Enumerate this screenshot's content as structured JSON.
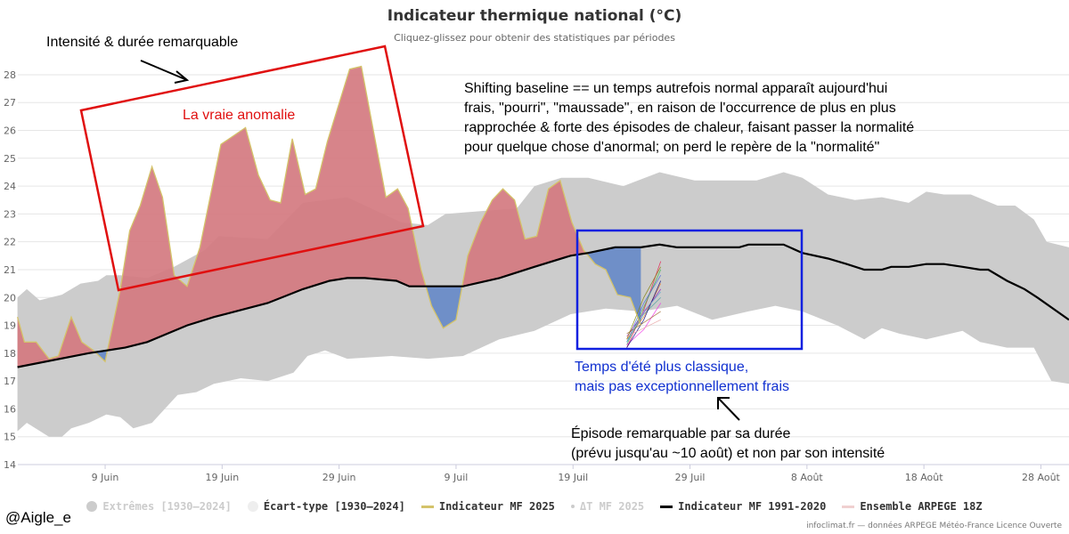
{
  "chart_data": {
    "type": "area",
    "title": "Indicateur thermique national (°C)",
    "subtitle": "Cliquez-glissez pour obtenir des statistiques par périodes",
    "xlabel": "",
    "ylabel": "",
    "x_unit": "days since 1 June 2025",
    "xlim": [
      0.5,
      90.4
    ],
    "ylim": [
      14,
      28
    ],
    "yticks": [
      "14",
      "15",
      "16",
      "17",
      "18",
      "19",
      "20",
      "21",
      "22",
      "23",
      "24",
      "25",
      "26",
      "27",
      "28"
    ],
    "xticks": [
      {
        "day": 8,
        "label": "9 Juin"
      },
      {
        "day": 18,
        "label": "19 Juin"
      },
      {
        "day": 28,
        "label": "29 Juin"
      },
      {
        "day": 38,
        "label": "9 Juil"
      },
      {
        "day": 48,
        "label": "19 Juil"
      },
      {
        "day": 58,
        "label": "29 Juil"
      },
      {
        "day": 68,
        "label": "8 Août"
      },
      {
        "day": 78,
        "label": "18 Août"
      },
      {
        "day": 88,
        "label": "28 Août"
      }
    ],
    "grid": true,
    "legend_position": "bottom",
    "series": [
      {
        "name": "Extrêmes [1930–2024] max",
        "color": "#cccccc",
        "points": [
          [
            0.5,
            20.0
          ],
          [
            1.3,
            20.3
          ],
          [
            2.4,
            19.9
          ],
          [
            4.3,
            20.1
          ],
          [
            5.9,
            20.5
          ],
          [
            7.4,
            20.6
          ],
          [
            8.1,
            20.8
          ],
          [
            9.3,
            20.8
          ],
          [
            11.6,
            20.7
          ],
          [
            13.9,
            21.1
          ],
          [
            16.5,
            21.7
          ],
          [
            17.7,
            22.2
          ],
          [
            21.9,
            22.1
          ],
          [
            24.9,
            23.4
          ],
          [
            28.7,
            23.6
          ],
          [
            33.3,
            22.7
          ],
          [
            35.6,
            22.6
          ],
          [
            37.1,
            23.0
          ],
          [
            40.1,
            23.1
          ],
          [
            43.2,
            23.2
          ],
          [
            44.7,
            24.0
          ],
          [
            47,
            24.3
          ],
          [
            49.3,
            24.3
          ],
          [
            52.3,
            24.0
          ],
          [
            55.4,
            24.5
          ],
          [
            58.4,
            24.2
          ],
          [
            63.7,
            24.2
          ],
          [
            66,
            24.5
          ],
          [
            67.6,
            24.3
          ],
          [
            69.8,
            23.7
          ],
          [
            72.1,
            23.5
          ],
          [
            74.4,
            23.6
          ],
          [
            76.7,
            23.4
          ],
          [
            78.2,
            23.8
          ],
          [
            79.7,
            23.7
          ],
          [
            82,
            23.7
          ],
          [
            84.3,
            23.3
          ],
          [
            85.8,
            23.3
          ],
          [
            87.4,
            22.8
          ],
          [
            88.5,
            22.0
          ],
          [
            90.4,
            21.8
          ]
        ]
      },
      {
        "name": "Extrêmes [1930–2024] min",
        "color": "#cccccc",
        "points": [
          [
            0.5,
            15.2
          ],
          [
            1.3,
            15.5
          ],
          [
            3.2,
            15.0
          ],
          [
            4.3,
            15.0
          ],
          [
            5.1,
            15.3
          ],
          [
            6.6,
            15.5
          ],
          [
            8.1,
            15.8
          ],
          [
            9.3,
            15.7
          ],
          [
            10.4,
            15.3
          ],
          [
            12,
            15.5
          ],
          [
            13.1,
            16.0
          ],
          [
            14.2,
            16.5
          ],
          [
            15.8,
            16.6
          ],
          [
            17.3,
            16.9
          ],
          [
            19.6,
            17.1
          ],
          [
            21.9,
            17.0
          ],
          [
            24.1,
            17.3
          ],
          [
            25.3,
            17.9
          ],
          [
            26.8,
            18.1
          ],
          [
            28.7,
            17.8
          ],
          [
            32.5,
            17.9
          ],
          [
            35.6,
            17.8
          ],
          [
            38.6,
            17.9
          ],
          [
            41.7,
            18.5
          ],
          [
            44.7,
            18.8
          ],
          [
            47.8,
            19.4
          ],
          [
            50.8,
            19.6
          ],
          [
            53.8,
            19.5
          ],
          [
            56.9,
            19.7
          ],
          [
            59.9,
            19.2
          ],
          [
            63,
            19.5
          ],
          [
            65.3,
            19.7
          ],
          [
            67.6,
            19.5
          ],
          [
            70.6,
            19.0
          ],
          [
            72.9,
            18.5
          ],
          [
            74.4,
            18.9
          ],
          [
            75.9,
            18.7
          ],
          [
            78.2,
            18.5
          ],
          [
            81.3,
            18.8
          ],
          [
            82.8,
            18.4
          ],
          [
            85.1,
            18.2
          ],
          [
            87.4,
            18.2
          ],
          [
            88.9,
            17.0
          ],
          [
            90.4,
            16.9
          ]
        ]
      },
      {
        "name": "Indicateur MF 2025",
        "color": "#d4c36a",
        "points": [
          [
            0.5,
            19.3
          ],
          [
            1.1,
            18.4
          ],
          [
            2.1,
            18.4
          ],
          [
            3.2,
            17.8
          ],
          [
            4.0,
            17.9
          ],
          [
            5.1,
            19.3
          ],
          [
            6.0,
            18.4
          ],
          [
            7.0,
            18.1
          ],
          [
            8.0,
            17.7
          ],
          [
            9.3,
            20.3
          ],
          [
            10.1,
            22.4
          ],
          [
            11.0,
            23.3
          ],
          [
            12.0,
            24.7
          ],
          [
            12.9,
            23.6
          ],
          [
            13.9,
            20.8
          ],
          [
            15.0,
            20.4
          ],
          [
            16.1,
            21.8
          ],
          [
            17.9,
            25.5
          ],
          [
            20.0,
            26.1
          ],
          [
            21.1,
            24.4
          ],
          [
            22.1,
            23.5
          ],
          [
            23.0,
            23.4
          ],
          [
            24.0,
            25.7
          ],
          [
            25.1,
            23.7
          ],
          [
            26.0,
            23.9
          ],
          [
            27.0,
            25.6
          ],
          [
            28.9,
            28.2
          ],
          [
            29.9,
            28.3
          ],
          [
            32.0,
            23.6
          ],
          [
            33.0,
            23.9
          ],
          [
            33.9,
            23.2
          ],
          [
            35.0,
            21.0
          ],
          [
            35.9,
            19.7
          ],
          [
            36.9,
            18.9
          ],
          [
            38.0,
            19.2
          ],
          [
            39.0,
            21.5
          ],
          [
            40.1,
            22.7
          ],
          [
            41.1,
            23.5
          ],
          [
            42.0,
            23.9
          ],
          [
            43.0,
            23.5
          ],
          [
            43.9,
            22.1
          ],
          [
            44.9,
            22.2
          ],
          [
            45.9,
            23.9
          ],
          [
            46.9,
            24.2
          ],
          [
            47.9,
            22.7
          ],
          [
            48.9,
            21.7
          ],
          [
            49.9,
            21.2
          ],
          [
            50.8,
            21.0
          ],
          [
            51.8,
            20.1
          ],
          [
            52.9,
            20.0
          ],
          [
            53.8,
            19.0
          ]
        ]
      },
      {
        "name": "Indicateur MF 1991-2020",
        "color": "#000000",
        "points": [
          [
            0.5,
            17.5
          ],
          [
            6.6,
            18.0
          ],
          [
            9.7,
            18.2
          ],
          [
            11.6,
            18.4
          ],
          [
            15,
            19.0
          ],
          [
            17.3,
            19.3
          ],
          [
            21.9,
            19.8
          ],
          [
            24.9,
            20.3
          ],
          [
            27.2,
            20.6
          ],
          [
            28.7,
            20.7
          ],
          [
            30.2,
            20.7
          ],
          [
            32.9,
            20.6
          ],
          [
            34,
            20.4
          ],
          [
            38.6,
            20.4
          ],
          [
            41.7,
            20.7
          ],
          [
            44.7,
            21.1
          ],
          [
            47.8,
            21.5
          ],
          [
            49.3,
            21.6
          ],
          [
            51.6,
            21.8
          ],
          [
            53.8,
            21.8
          ],
          [
            55.4,
            21.9
          ],
          [
            56.9,
            21.8
          ],
          [
            62.2,
            21.8
          ],
          [
            63,
            21.9
          ],
          [
            66,
            21.9
          ],
          [
            67.6,
            21.6
          ],
          [
            69.8,
            21.4
          ],
          [
            71.4,
            21.2
          ],
          [
            72.9,
            21.0
          ],
          [
            74.4,
            21.0
          ],
          [
            75.2,
            21.1
          ],
          [
            76.7,
            21.1
          ],
          [
            78.2,
            21.2
          ],
          [
            79.7,
            21.2
          ],
          [
            81.3,
            21.1
          ],
          [
            82.8,
            21.0
          ],
          [
            83.5,
            21.0
          ],
          [
            85.1,
            20.6
          ],
          [
            86.6,
            20.3
          ],
          [
            87.7,
            20.0
          ],
          [
            90.4,
            19.2
          ]
        ]
      }
    ],
    "ensemble": {
      "name": "Ensemble ARPEGE 18Z",
      "start_day": 52.6,
      "end_day": 55.5,
      "start_values": [
        18.2,
        18.3,
        18.4,
        18.5,
        18.6,
        18.4,
        18.3,
        18.7,
        18.5,
        18.2,
        18.6,
        18.4
      ],
      "end_values": [
        21.3,
        21.0,
        20.8,
        20.5,
        20.3,
        20.0,
        19.8,
        19.5,
        21.1,
        20.6,
        19.2,
        20.2
      ],
      "colors": [
        "#e6194b",
        "#3cb44b",
        "#4363d8",
        "#f58231",
        "#911eb4",
        "#46a0a0",
        "#f032e6",
        "#9a6324",
        "#808000",
        "#000075",
        "#e6a0a0",
        "#5aa0d0"
      ]
    },
    "above_fill": "#d47a80",
    "below_fill": "#6f8fc8"
  },
  "legend": [
    {
      "label": "Extrêmes [1930–2024]",
      "dim": true
    },
    {
      "label": "Écart-type [1930–2024]",
      "dim": false
    },
    {
      "label": "Indicateur MF 2025",
      "dim": false
    },
    {
      "label": "ΔT MF 2025",
      "dim": true
    },
    {
      "label": "Indicateur MF 1991-2020",
      "dim": false
    },
    {
      "label": "Ensemble ARPEGE 18Z",
      "dim": false
    }
  ],
  "annotations": {
    "top_left": "Intensité & durée remarquable",
    "anomaly": "La vraie anomalie",
    "shifting": [
      "Shifting baseline == un temps autrefois normal apparaît aujourd'hui",
      "frais, \"pourri\", \"maussade\", en raison de l'occurrence de plus en plus",
      "rapprochée & forte des épisodes de chaleur, faisant passer la normalité",
      "pour quelque chose d'anormal; on perd le repère de la \"normalité\""
    ],
    "classic": [
      "Temps d'été plus classique,",
      "mais pas exceptionnellement frais"
    ],
    "episode": [
      "Épisode remarquable par sa durée",
      "(prévu   jusqu'au ~10 août) et non par son intensité"
    ]
  },
  "handle": "@Aigle_e",
  "credit": "infoclimat.fr — données ARPEGE Météo-France Licence Ouverte"
}
